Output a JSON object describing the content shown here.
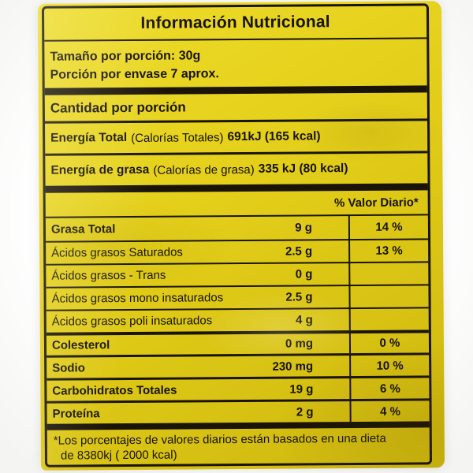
{
  "label": {
    "title": "Información Nutricional",
    "serving": {
      "size": "Tamaño por porción: 30g",
      "per_package": "Porción por envase 7 aprox."
    },
    "amount_header": "Cantidad por porción",
    "energy": [
      {
        "name": "Energía Total",
        "paren": "(Calorías Totales)",
        "value": "691kJ (165 kcal)"
      },
      {
        "name": "Energía de grasa",
        "paren": "(Calorías de grasa)",
        "value": "335 kJ (80 kcal)"
      }
    ],
    "daily_value_header": "% Valor Diario*",
    "rows": [
      {
        "name": "Grasa Total",
        "amount": "9 g",
        "dv": "14 %"
      },
      {
        "name": "Ácidos grasos Saturados",
        "amount": "2.5 g",
        "dv": "13 %"
      },
      {
        "name": "Ácidos grasos - Trans",
        "amount": "0 g",
        "dv": ""
      },
      {
        "name": "Ácidos grasos mono insaturados",
        "amount": "2.5 g",
        "dv": ""
      },
      {
        "name": "Ácidos grasos poli insaturados",
        "amount": "4 g",
        "dv": ""
      },
      {
        "name": "Colesterol",
        "amount": "0 mg",
        "dv": "0 %"
      },
      {
        "name": "Sodio",
        "amount": "230 mg",
        "dv": "10 %"
      },
      {
        "name": "Carbohidratos Totales",
        "amount": "19 g",
        "dv": "6 %"
      },
      {
        "name": "Proteína",
        "amount": "2 g",
        "dv": "4 %"
      }
    ],
    "footnote_line1": "*Los porcentajes de valores diarios están basados en una dieta",
    "footnote_line2": "de 8380kj ( 2000 kcal)",
    "colors": {
      "bag_yellow": "#e0cb18",
      "ink": "#1a1408"
    }
  }
}
